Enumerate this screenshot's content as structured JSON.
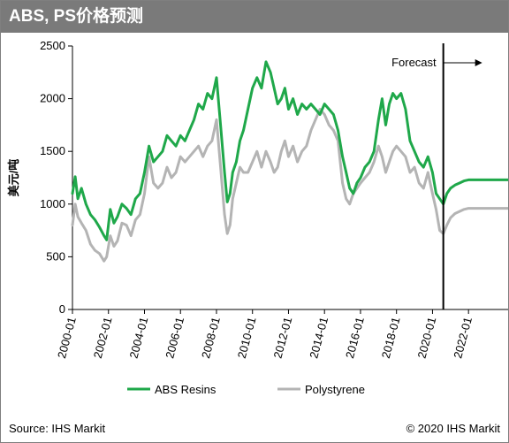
{
  "header": {
    "title": "ABS, PS价格预测"
  },
  "footer": {
    "source": "Source: IHS Markit",
    "copyright": "© 2020 IHS Markit"
  },
  "chart_data": {
    "type": "line",
    "title": "ABS, PS价格预测",
    "ylabel": "美元/吨",
    "xlabel": "",
    "xlim": [
      2000.0,
      2024.2
    ],
    "ylim": [
      0,
      2500
    ],
    "yticks": [
      0,
      500,
      1000,
      1500,
      2000,
      2500
    ],
    "xticks": [
      "2000-01",
      "2002-01",
      "2004-01",
      "2006-01",
      "2008-01",
      "2010-01",
      "2012-01",
      "2014-01",
      "2016-01",
      "2018-01",
      "2020-01",
      "2022-01"
    ],
    "grid": false,
    "legend": "bottom",
    "annotation": {
      "text": "Forecast",
      "x": 2020.6
    },
    "series": [
      {
        "name": "ABS Resins",
        "color": "#1fa84a",
        "x": [
          2000.0,
          2000.15,
          2000.3,
          2000.5,
          2000.75,
          2001.0,
          2001.25,
          2001.5,
          2001.75,
          2001.9,
          2002.1,
          2002.3,
          2002.5,
          2002.75,
          2003.0,
          2003.25,
          2003.5,
          2003.75,
          2004.0,
          2004.25,
          2004.5,
          2004.75,
          2005.0,
          2005.25,
          2005.5,
          2005.75,
          2006.0,
          2006.25,
          2006.5,
          2006.75,
          2007.0,
          2007.25,
          2007.5,
          2007.75,
          2008.0,
          2008.25,
          2008.45,
          2008.6,
          2008.75,
          2008.9,
          2009.1,
          2009.3,
          2009.5,
          2009.75,
          2010.0,
          2010.25,
          2010.5,
          2010.75,
          2011.0,
          2011.2,
          2011.4,
          2011.6,
          2011.8,
          2012.0,
          2012.25,
          2012.5,
          2012.75,
          2013.0,
          2013.25,
          2013.5,
          2013.75,
          2014.0,
          2014.25,
          2014.5,
          2014.75,
          2015.0,
          2015.2,
          2015.4,
          2015.6,
          2015.8,
          2016.0,
          2016.25,
          2016.5,
          2016.75,
          2017.0,
          2017.2,
          2017.4,
          2017.6,
          2017.8,
          2018.0,
          2018.25,
          2018.5,
          2018.75,
          2019.0,
          2019.25,
          2019.5,
          2019.75,
          2020.0,
          2020.2,
          2020.4,
          2020.6,
          2020.8,
          2021.0,
          2021.25,
          2021.5,
          2021.75,
          2022.0,
          2022.5,
          2023.0,
          2023.5,
          2024.2
        ],
        "y": [
          1100,
          1260,
          1050,
          1150,
          1000,
          900,
          850,
          780,
          700,
          660,
          950,
          820,
          880,
          1000,
          960,
          900,
          1050,
          1100,
          1300,
          1550,
          1400,
          1450,
          1500,
          1650,
          1600,
          1550,
          1650,
          1600,
          1700,
          1800,
          1950,
          1900,
          2050,
          2000,
          2200,
          1700,
          1300,
          1020,
          1100,
          1300,
          1400,
          1600,
          1700,
          1900,
          2100,
          2200,
          2100,
          2350,
          2250,
          2100,
          1950,
          2000,
          2100,
          1900,
          2000,
          1850,
          1950,
          1900,
          1950,
          1900,
          1850,
          1950,
          1900,
          1850,
          1700,
          1450,
          1300,
          1150,
          1100,
          1200,
          1250,
          1350,
          1400,
          1500,
          1800,
          2000,
          1750,
          1950,
          2050,
          2000,
          2050,
          1900,
          1600,
          1500,
          1400,
          1350,
          1450,
          1300,
          1100,
          1050,
          1000,
          1100,
          1150,
          1180,
          1200,
          1220,
          1230,
          1230,
          1230,
          1230,
          1230
        ]
      },
      {
        "name": "Polystyrene",
        "color": "#b4b4b4",
        "x": [
          2000.0,
          2000.15,
          2000.3,
          2000.5,
          2000.75,
          2001.0,
          2001.25,
          2001.5,
          2001.75,
          2001.9,
          2002.1,
          2002.3,
          2002.5,
          2002.75,
          2003.0,
          2003.25,
          2003.5,
          2003.75,
          2004.0,
          2004.25,
          2004.5,
          2004.75,
          2005.0,
          2005.25,
          2005.5,
          2005.75,
          2006.0,
          2006.25,
          2006.5,
          2006.75,
          2007.0,
          2007.25,
          2007.5,
          2007.75,
          2008.0,
          2008.25,
          2008.45,
          2008.6,
          2008.75,
          2008.9,
          2009.1,
          2009.3,
          2009.5,
          2009.75,
          2010.0,
          2010.25,
          2010.5,
          2010.75,
          2011.0,
          2011.2,
          2011.4,
          2011.6,
          2011.8,
          2012.0,
          2012.25,
          2012.5,
          2012.75,
          2013.0,
          2013.25,
          2013.5,
          2013.75,
          2014.0,
          2014.25,
          2014.5,
          2014.75,
          2015.0,
          2015.2,
          2015.4,
          2015.6,
          2015.8,
          2016.0,
          2016.25,
          2016.5,
          2016.75,
          2017.0,
          2017.2,
          2017.4,
          2017.6,
          2017.8,
          2018.0,
          2018.25,
          2018.5,
          2018.75,
          2019.0,
          2019.25,
          2019.5,
          2019.75,
          2020.0,
          2020.2,
          2020.4,
          2020.6,
          2020.8,
          2021.0,
          2021.25,
          2021.5,
          2021.75,
          2022.0,
          2022.5,
          2023.0,
          2023.5,
          2024.2
        ],
        "y": [
          800,
          1000,
          880,
          820,
          750,
          620,
          560,
          530,
          460,
          500,
          700,
          600,
          650,
          820,
          800,
          700,
          850,
          900,
          1100,
          1450,
          1200,
          1150,
          1200,
          1350,
          1250,
          1300,
          1450,
          1400,
          1450,
          1500,
          1550,
          1450,
          1550,
          1600,
          1800,
          1300,
          900,
          720,
          800,
          1050,
          1200,
          1350,
          1300,
          1300,
          1400,
          1500,
          1350,
          1500,
          1400,
          1300,
          1350,
          1500,
          1600,
          1450,
          1550,
          1400,
          1500,
          1550,
          1700,
          1800,
          1900,
          1850,
          1750,
          1700,
          1600,
          1200,
          1050,
          1000,
          1100,
          1150,
          1200,
          1250,
          1300,
          1400,
          1550,
          1450,
          1300,
          1400,
          1500,
          1550,
          1500,
          1450,
          1300,
          1350,
          1200,
          1150,
          1300,
          1100,
          950,
          750,
          720,
          800,
          870,
          910,
          930,
          950,
          960,
          960,
          960,
          960,
          960
        ]
      }
    ]
  }
}
